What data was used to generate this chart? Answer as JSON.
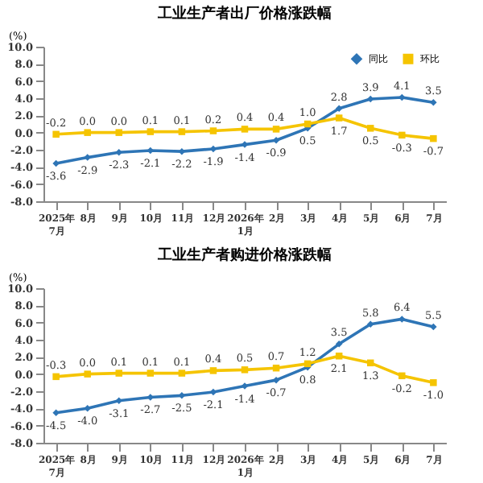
{
  "chart_data": [
    {
      "type": "line",
      "title": "工业生产者出厂价格涨跌幅",
      "ylabel": "(%)",
      "categories": [
        "2025年\n7月",
        "8月",
        "9月",
        "10月",
        "11月",
        "12月",
        "2026年\n1月",
        "2月",
        "3月",
        "4月",
        "5月",
        "6月",
        "7月"
      ],
      "series": [
        {
          "name": "同比",
          "color": "#2e75b6",
          "marker": "diamond",
          "values": [
            -3.6,
            -2.9,
            -2.3,
            -2.1,
            -2.2,
            -1.9,
            -1.4,
            -0.9,
            0.5,
            2.8,
            3.9,
            4.1,
            3.5
          ],
          "value_labels": [
            "-3.6",
            "-2.9",
            "-2.3",
            "-2.1",
            "-2.2",
            "-1.9",
            "-1.4",
            "-0.9",
            "0.5",
            "2.8",
            "3.9",
            "4.1",
            "3.5"
          ]
        },
        {
          "name": "环比",
          "color": "#f5c400",
          "marker": "square",
          "values": [
            -0.2,
            0.0,
            0.0,
            0.1,
            0.1,
            0.2,
            0.4,
            0.4,
            1.0,
            1.7,
            0.5,
            -0.3,
            -0.7
          ],
          "value_labels": [
            "-0.2",
            "0.0",
            "0.0",
            "0.1",
            "0.1",
            "0.2",
            "0.4",
            "0.4",
            "1.0",
            "1.7",
            "0.5",
            "-0.3",
            "-0.7"
          ]
        }
      ],
      "ylim": [
        -8,
        10
      ],
      "yticks": [
        {
          "value": -8,
          "label": "-8.0"
        },
        {
          "value": -6,
          "label": "-6.0"
        },
        {
          "value": -4,
          "label": "-4.0"
        },
        {
          "value": -2,
          "label": "-2.0"
        },
        {
          "value": 0,
          "label": "0.0"
        },
        {
          "value": 2,
          "label": "2.0"
        },
        {
          "value": 4,
          "label": "4.0"
        },
        {
          "value": 6,
          "label": "6.0"
        },
        {
          "value": 8,
          "label": "8.0"
        },
        {
          "value": 10,
          "label": "10.0"
        }
      ],
      "data_labels": true,
      "legend": "top right",
      "grid": false
    },
    {
      "type": "line",
      "title": "工业生产者购进价格涨跌幅",
      "ylabel": "(%)",
      "categories": [
        "2025年\n7月",
        "8月",
        "9月",
        "10月",
        "11月",
        "12月",
        "2026年\n1月",
        "2月",
        "3月",
        "4月",
        "5月",
        "6月",
        "7月"
      ],
      "series": [
        {
          "name": "同比",
          "color": "#2e75b6",
          "marker": "diamond",
          "values": [
            -4.5,
            -4.0,
            -3.1,
            -2.7,
            -2.5,
            -2.1,
            -1.4,
            -0.7,
            0.8,
            3.5,
            5.8,
            6.4,
            5.5
          ],
          "value_labels": [
            "-4.5",
            "-4.0",
            "-3.1",
            "-2.7",
            "-2.5",
            "-2.1",
            "-1.4",
            "-0.7",
            "0.8",
            "3.5",
            "5.8",
            "6.4",
            "5.5"
          ]
        },
        {
          "name": "环比",
          "color": "#f5c400",
          "marker": "square",
          "values": [
            -0.3,
            0.0,
            0.1,
            0.1,
            0.1,
            0.4,
            0.5,
            0.7,
            1.2,
            2.1,
            1.3,
            -0.2,
            -1.0
          ],
          "value_labels": [
            "-0.3",
            "0.0",
            "0.1",
            "0.1",
            "0.1",
            "0.4",
            "0.5",
            "0.7",
            "1.2",
            "2.1",
            "1.3",
            "-0.2",
            "-1.0"
          ]
        }
      ],
      "ylim": [
        -8,
        10
      ],
      "yticks": [
        {
          "value": -8,
          "label": "-8.0"
        },
        {
          "value": -6,
          "label": "-6.0"
        },
        {
          "value": -4,
          "label": "-4.0"
        },
        {
          "value": -2,
          "label": "-2.0"
        },
        {
          "value": 0,
          "label": "0.0"
        },
        {
          "value": 2,
          "label": "2.0"
        },
        {
          "value": 4,
          "label": "4.0"
        },
        {
          "value": 6,
          "label": "6.0"
        },
        {
          "value": 8,
          "label": "8.0"
        },
        {
          "value": 10,
          "label": "10.0"
        }
      ],
      "data_labels": true,
      "legend": "top right",
      "grid": false
    }
  ]
}
